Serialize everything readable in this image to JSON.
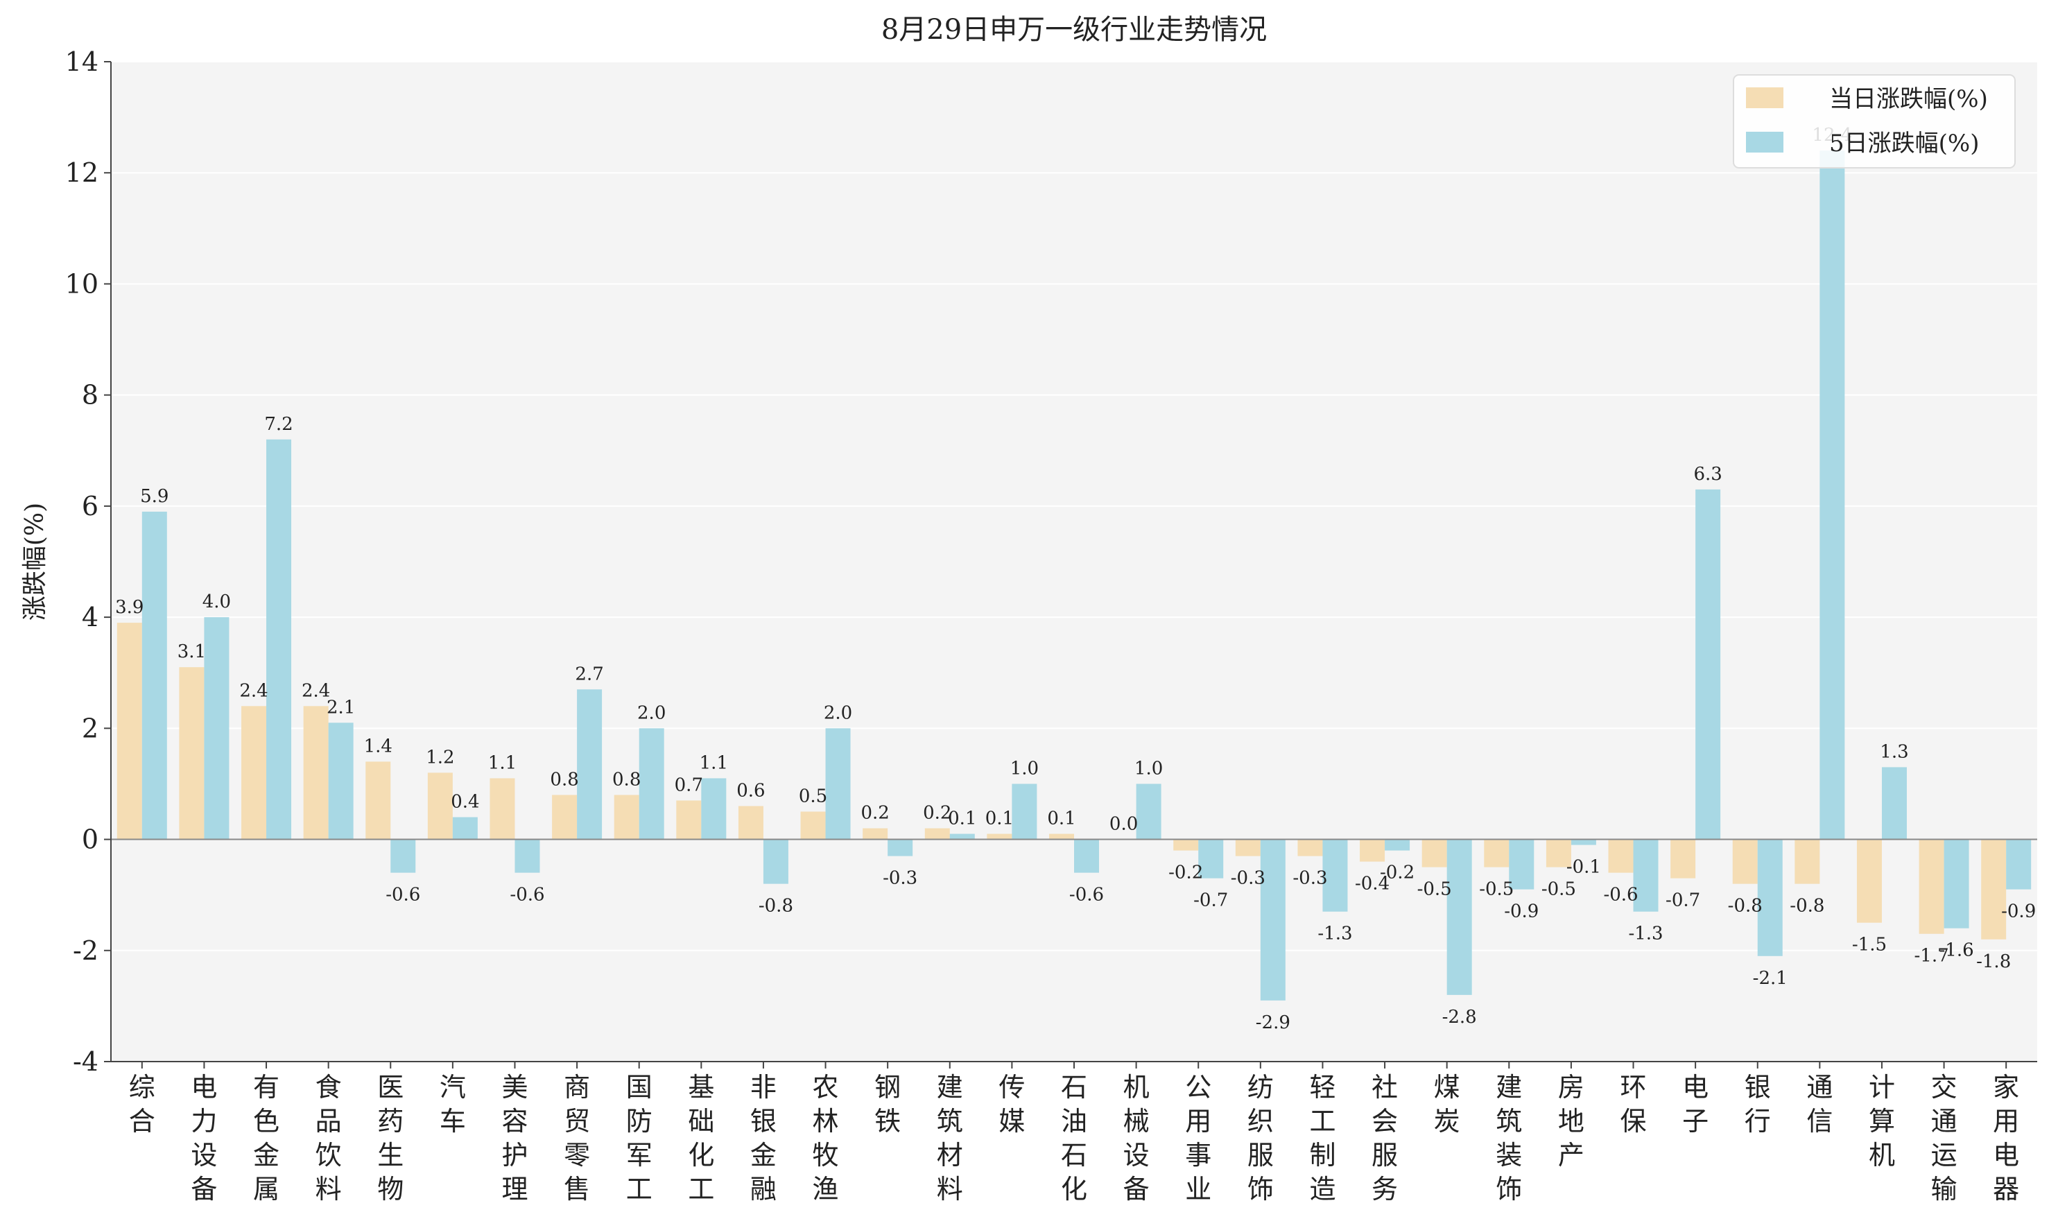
{
  "chart_data": {
    "type": "bar",
    "title": "8月29日申万一级行业走势情况",
    "xlabel": "",
    "ylabel": "涨跌幅(%)",
    "ylim": [
      -4,
      14
    ],
    "yticks": [
      -4,
      -2,
      0,
      2,
      4,
      6,
      8,
      10,
      12,
      14
    ],
    "grid": true,
    "legend_position": "top-right",
    "categories": [
      "综合",
      "电力设备",
      "有色金属",
      "食品饮料",
      "医药生物",
      "汽车",
      "美容护理",
      "商贸零售",
      "国防军工",
      "基础化工",
      "非银金融",
      "农林牧渔",
      "钢铁",
      "建筑材料",
      "传媒",
      "石油石化",
      "机械设备",
      "公用事业",
      "纺织服饰",
      "轻工制造",
      "社会服务",
      "煤炭",
      "建筑装饰",
      "房地产",
      "环保",
      "电子",
      "银行",
      "通信",
      "计算机",
      "交通运输",
      "家用电器"
    ],
    "series": [
      {
        "name": "当日涨跌幅(%)",
        "color": "#f5ddb4",
        "values": [
          3.9,
          3.1,
          2.4,
          2.4,
          1.4,
          1.2,
          1.1,
          0.8,
          0.8,
          0.7,
          0.6,
          0.5,
          0.2,
          0.2,
          0.1,
          0.1,
          0.0,
          -0.2,
          -0.3,
          -0.3,
          -0.4,
          -0.5,
          -0.5,
          -0.5,
          -0.6,
          -0.7,
          -0.8,
          -0.8,
          -1.5,
          -1.7,
          -1.8
        ]
      },
      {
        "name": "5日涨跌幅(%)",
        "color": "#a8d8e4",
        "values": [
          5.9,
          4.0,
          7.2,
          2.1,
          -0.6,
          0.4,
          -0.6,
          2.7,
          2.0,
          1.1,
          -0.8,
          2.0,
          -0.3,
          0.1,
          1.0,
          -0.6,
          1.0,
          -0.7,
          -2.9,
          -1.3,
          -0.2,
          -2.8,
          -0.9,
          -0.1,
          -1.3,
          6.3,
          -2.1,
          12.4,
          1.3,
          -1.6,
          -0.9
        ]
      }
    ]
  }
}
